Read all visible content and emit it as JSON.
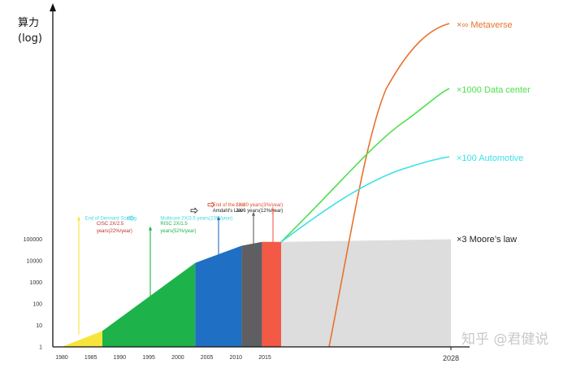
{
  "chart_data": {
    "type": "area",
    "y_axis_title_line1": "算力",
    "y_axis_title_line2": "(log)",
    "y_scale": "log",
    "y_ticks": [
      "1",
      "10",
      "100",
      "1000",
      "10000",
      "100000"
    ],
    "x_ticks": [
      "1980",
      "1985",
      "1990",
      "1995",
      "2000",
      "2005",
      "2010",
      "2015",
      "2028"
    ],
    "regions": [
      {
        "name": "CISC",
        "color": "#f7e43a",
        "points": [
          [
            1980,
            1
          ],
          [
            1987,
            5.5
          ]
        ]
      },
      {
        "name": "RISC",
        "color": "#1db34a",
        "points": [
          [
            1987,
            5.5
          ],
          [
            2003,
            8000
          ]
        ]
      },
      {
        "name": "Multicore",
        "color": "#1f6fc4",
        "points": [
          [
            2003,
            8000
          ],
          [
            2011,
            50000
          ]
        ]
      },
      {
        "name": "Amdahl",
        "color": "#5f5f63",
        "points": [
          [
            2011,
            50000
          ],
          [
            2014.5,
            75000
          ]
        ]
      },
      {
        "name": "End of the Line",
        "color": "#f25a46",
        "points": [
          [
            2014.5,
            75000
          ],
          [
            2017.5,
            75000
          ]
        ]
      },
      {
        "name": "Moore",
        "color": "#dddddd",
        "points": [
          [
            2017.5,
            75000
          ],
          [
            2028,
            100000
          ]
        ]
      }
    ],
    "annotations": [
      {
        "text": "End of Dennard Scaling",
        "color": "#40d8e0",
        "x": 1984,
        "y": 800000,
        "arrow_color": "#f7e43a",
        "arrow_top": 1150000
      },
      {
        "text_line1": "CISC 2X/2.5",
        "text_line2": "years(22%/year)",
        "color": "#c0302a",
        "x": 1986,
        "y": 460000
      },
      {
        "text": "Multicore 2X/3.5 years(23%/year)",
        "color": "#40d8e0",
        "x": 1997,
        "y": 800000,
        "arrow_color": "#1db34a",
        "arrow_top": 400000
      },
      {
        "text_line1": "RISC 2X/1.5",
        "text_line2": "years(52%/year)",
        "color": "#1db34a",
        "x": 1997,
        "y": 460000
      },
      {
        "text": "Amdahl's Law",
        "color": "#222222",
        "x": 2006,
        "y": 1800000,
        "arrow_color": "#1f6fc4",
        "arrow_top": 1200000
      },
      {
        "text": "2X/6 years(12%/year)",
        "color": "#222222",
        "x": 2010,
        "y": 1800000,
        "arrow_color": "#5f5f63",
        "arrow_top": 1900000
      },
      {
        "text": "End of the Line",
        "color": "#e0502f",
        "x": 2006,
        "y": 3400000,
        "arrow_color": "#f25a46",
        "arrow_top": 3000000
      },
      {
        "text": "2X/20 years(3%/year)",
        "color": "#e0502f",
        "x": 2010,
        "y": 3400000
      }
    ],
    "curves": [
      {
        "name": "×∞ Metaverse",
        "color": "#e8722f"
      },
      {
        "name": "×1000 Data center",
        "color": "#4ce04c"
      },
      {
        "name": "×100 Automotive",
        "color": "#3fe0e6"
      },
      {
        "name": "×3 Moore’s law",
        "color": "#222222"
      }
    ]
  },
  "watermark": "知乎 @君健说"
}
